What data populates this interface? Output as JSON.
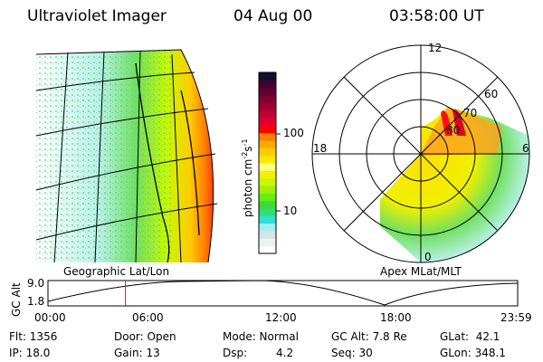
{
  "header": {
    "title": "Ultraviolet Imager",
    "date": "04 Aug 00",
    "time": "03:58:00 UT"
  },
  "left_panel": {
    "label": "Geographic Lat/Lon"
  },
  "right_panel": {
    "label": "Apex MLat/MLT",
    "mlt_labels": [
      "12",
      "18",
      "6",
      "0"
    ],
    "lat_labels": [
      "80",
      "70",
      "60"
    ]
  },
  "colorbar": {
    "unit": "photon cm",
    "sup1": "-2",
    "mid": "s",
    "sup2": "-1",
    "ticks": [
      "100",
      "10"
    ],
    "colors": [
      "#ffffff",
      "#e8f4ee",
      "#d6e4e4",
      "#a0eef4",
      "#30e0d8",
      "#30e070",
      "#40d840",
      "#60f010",
      "#a0f000",
      "#c8f800",
      "#f0f000",
      "#ffff80",
      "#ffe800",
      "#ffcc00",
      "#ffa800",
      "#ff8000",
      "#ff0000",
      "#e00030",
      "#c00030",
      "#a00030",
      "#800030",
      "#600030",
      "#400030",
      "#101030"
    ]
  },
  "altitude_plot": {
    "axis_label": "GC Alt",
    "y_ticks": [
      "9.0",
      "1.8"
    ],
    "x_ticks": [
      "00:00",
      "06:00",
      "12:00",
      "18:00",
      "23:59"
    ],
    "current_time_fraction": 0.165,
    "marker_color": "#ff0000"
  },
  "info": {
    "flt": "Flt: 1356",
    "ip": "IP: 18.0",
    "door": "Door: Open",
    "gain": "Gain: 13",
    "mode": "Mode: Normal",
    "dsp_label": "Dsp:",
    "dsp": "4.2",
    "gc_alt": "GC Alt: 7.8 Re",
    "seq": "Seq: 30",
    "glat": "GLat:  42.1",
    "glon": "GLon: 348.1"
  }
}
